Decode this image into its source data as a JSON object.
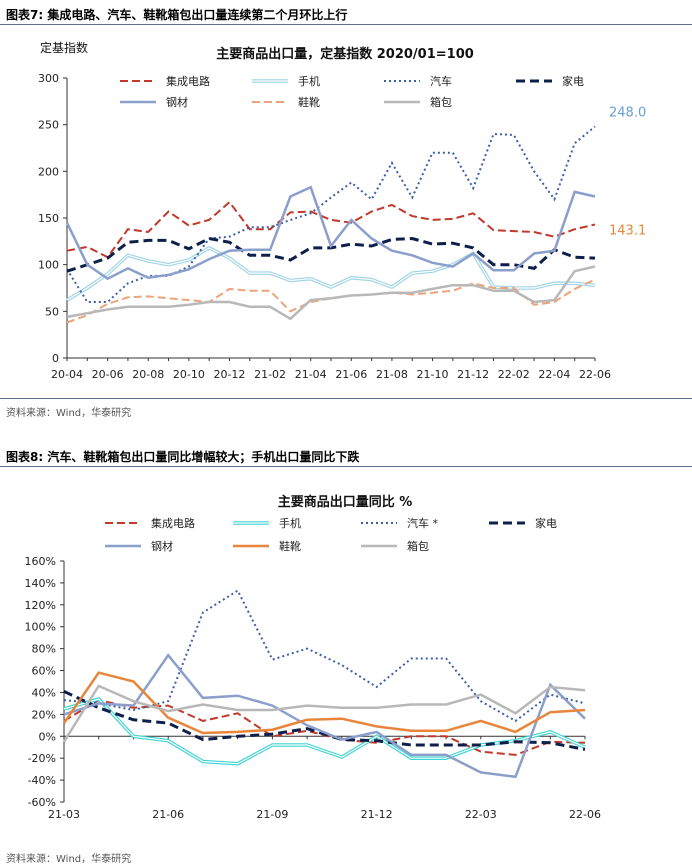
{
  "figure1": {
    "heading": "图表7:  集成电路、汽车、鞋靴箱包出口量连续第二个月环比上行",
    "source": "资料来源：Wind，华泰研究"
  },
  "figure2": {
    "heading": "图表8:  汽车、鞋靴箱包出口量同比增幅较大；手机出口量同比下跌",
    "source": "资料来源：Wind，华泰研究"
  },
  "chart_data": [
    {
      "type": "line",
      "title": "主要商品出口量，定基指数 2020/01=100",
      "ylabel": "定基指数",
      "xlabel": "",
      "ylim": [
        0,
        300
      ],
      "yticks": [
        0,
        50,
        100,
        150,
        200,
        250,
        300
      ],
      "x_tick_labels": [
        "20-04",
        "20-06",
        "20-08",
        "20-10",
        "20-12",
        "21-02",
        "21-04",
        "21-06",
        "21-08",
        "21-10",
        "21-12",
        "22-02",
        "22-04",
        "22-06"
      ],
      "x": [
        "20-04",
        "20-05",
        "20-06",
        "20-07",
        "20-08",
        "20-09",
        "20-10",
        "20-11",
        "20-12",
        "21-01",
        "21-02",
        "21-03",
        "21-04",
        "21-05",
        "21-06",
        "21-07",
        "21-08",
        "21-09",
        "21-10",
        "21-11",
        "21-12",
        "22-01",
        "22-02",
        "22-03",
        "22-04",
        "22-05",
        "22-06"
      ],
      "series": [
        {
          "name": "集成电路",
          "color": "#c0392b",
          "style": "dash",
          "values": [
            115,
            119,
            108,
            138,
            135,
            157,
            142,
            148,
            167,
            138,
            138,
            156,
            157,
            148,
            145,
            157,
            164,
            152,
            148,
            149,
            155,
            137,
            136,
            135,
            130,
            138,
            143
          ]
        },
        {
          "name": "手机",
          "color": "#9fd3e6",
          "style": "double",
          "values": [
            62,
            75,
            90,
            110,
            104,
            100,
            105,
            118,
            107,
            91,
            91,
            83,
            85,
            76,
            86,
            84,
            76,
            91,
            93,
            100,
            112,
            76,
            75,
            75,
            80,
            80,
            78
          ]
        },
        {
          "name": "汽车",
          "color": "#3b5fa8",
          "style": "dot",
          "values": [
            95,
            60,
            60,
            80,
            88,
            88,
            98,
            128,
            130,
            140,
            140,
            148,
            155,
            172,
            188,
            170,
            209,
            172,
            220,
            220,
            182,
            240,
            239,
            200,
            170,
            230,
            248
          ]
        },
        {
          "name": "家电",
          "color": "#0d1f4a",
          "style": "bigdash",
          "values": [
            93,
            100,
            107,
            124,
            126,
            126,
            117,
            128,
            124,
            110,
            110,
            105,
            118,
            118,
            122,
            120,
            127,
            128,
            122,
            123,
            118,
            100,
            100,
            96,
            116,
            108,
            107
          ]
        },
        {
          "name": "钢材",
          "color": "#8b9fcc",
          "style": "solid",
          "values": [
            145,
            100,
            85,
            96,
            86,
            89,
            95,
            106,
            115,
            116,
            116,
            173,
            183,
            120,
            148,
            128,
            115,
            110,
            102,
            98,
            112,
            94,
            94,
            112,
            115,
            178,
            173
          ]
        },
        {
          "name": "鞋靴",
          "color": "#eba57a",
          "style": "dash",
          "values": [
            38,
            46,
            58,
            65,
            66,
            64,
            62,
            60,
            74,
            72,
            72,
            50,
            60,
            64,
            67,
            68,
            70,
            68,
            70,
            72,
            80,
            75,
            75,
            57,
            60,
            74,
            84
          ]
        },
        {
          "name": "箱包",
          "color": "#b8b8b8",
          "style": "solid",
          "values": [
            44,
            48,
            52,
            55,
            55,
            55,
            57,
            60,
            60,
            55,
            55,
            42,
            62,
            64,
            67,
            68,
            70,
            70,
            74,
            78,
            78,
            72,
            72,
            60,
            62,
            93,
            98
          ]
        }
      ],
      "annotations": [
        {
          "text": "248.0",
          "color": "#6a9fd0",
          "series": "汽车"
        },
        {
          "text": "143.1",
          "color": "#e38a3a",
          "series": "集成电路"
        }
      ]
    },
    {
      "type": "line",
      "title": "主要商品出口量同比 %",
      "xlabel": "",
      "ylabel": "",
      "ylim": [
        -60,
        160
      ],
      "yticks": [
        -60,
        -40,
        -20,
        0,
        20,
        40,
        60,
        80,
        100,
        120,
        140,
        160
      ],
      "ytick_suffix": "%",
      "x_tick_labels": [
        "21-03",
        "21-06",
        "21-09",
        "21-12",
        "22-03",
        "22-06"
      ],
      "x": [
        "21-03",
        "21-04",
        "21-05",
        "21-06",
        "21-07",
        "21-08",
        "21-09",
        "21-10",
        "21-11",
        "21-12",
        "22-01",
        "22-02",
        "22-03",
        "22-04",
        "22-05",
        "22-06"
      ],
      "series": [
        {
          "name": "集成电路",
          "color": "#c0392b",
          "style": "dash",
          "values": [
            14,
            33,
            26,
            28,
            14,
            21,
            0,
            5,
            -3,
            -6,
            0,
            0,
            -14,
            -17,
            -5,
            -6
          ]
        },
        {
          "name": "手机",
          "color": "#3fd4d4",
          "style": "double",
          "values": [
            25,
            34,
            0,
            -4,
            -23,
            -25,
            -8,
            -8,
            -19,
            0,
            -20,
            -20,
            -8,
            -4,
            4,
            -10
          ]
        },
        {
          "name": "汽车 *",
          "color": "#3b5fa8",
          "style": "dot",
          "values": [
            33,
            30,
            24,
            32,
            113,
            133,
            70,
            80,
            65,
            45,
            71,
            71,
            32,
            14,
            38,
            30
          ]
        },
        {
          "name": "家电",
          "color": "#0d1f4a",
          "style": "bigdash",
          "values": [
            41,
            26,
            15,
            12,
            -3,
            0,
            2,
            7,
            -3,
            -4,
            -8,
            -8,
            -8,
            -5,
            -6,
            -12
          ]
        },
        {
          "name": "钢材",
          "color": "#8b9fcc",
          "style": "solid",
          "values": [
            20,
            30,
            28,
            74,
            35,
            37,
            28,
            10,
            -3,
            4,
            -17,
            -17,
            -33,
            -37,
            47,
            16
          ]
        },
        {
          "name": "鞋靴",
          "color": "#e8853a",
          "style": "solid",
          "values": [
            12,
            58,
            50,
            17,
            3,
            4,
            6,
            15,
            16,
            9,
            5,
            5,
            14,
            4,
            22,
            24
          ]
        },
        {
          "name": "箱包",
          "color": "#b8b8b8",
          "style": "solid",
          "values": [
            -5,
            46,
            32,
            23,
            29,
            24,
            24,
            28,
            26,
            26,
            29,
            29,
            38,
            21,
            45,
            42
          ]
        }
      ]
    }
  ]
}
